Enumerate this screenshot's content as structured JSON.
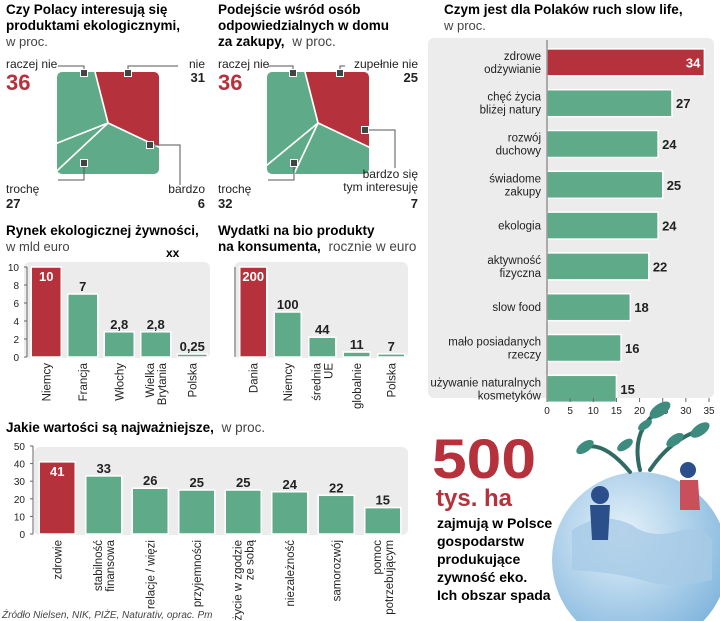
{
  "colors": {
    "red": "#b5313b",
    "green": "#5faa88",
    "panel": "#ececec",
    "axis": "#666666",
    "text": "#222222"
  },
  "source": "Źródło Nielsen, NIK, PIŻE, Naturativ, oprac. Pm",
  "chart_data": [
    {
      "id": "interest",
      "type": "pie",
      "title_lines": [
        "Czy Polacy interesują się",
        "produktami ekologicznymi,"
      ],
      "subtitle": "w proc.",
      "slices": [
        {
          "label": "raczej nie",
          "value": "36",
          "red": true
        },
        {
          "label": "nie",
          "value": "31"
        },
        {
          "label": "bardzo",
          "value": "6"
        },
        {
          "label": "trochę",
          "value": "27"
        }
      ]
    },
    {
      "id": "responsible",
      "type": "pie",
      "title_lines": [
        "Podejście wśród osób",
        "odpowiedzialnych w domu"
      ],
      "title_last": "za zakupy,",
      "subtitle": "w proc.",
      "slices": [
        {
          "label": "raczej nie",
          "value": "36",
          "red": true
        },
        {
          "label": "zupełnie nie",
          "value": "25"
        },
        {
          "label": "bardzo się tym interesuję",
          "label_lines": [
            "bardzo się",
            "tym interesuję"
          ],
          "value": "7"
        },
        {
          "label": "trochę",
          "value": "32"
        }
      ]
    },
    {
      "id": "slowlife",
      "type": "bar",
      "orientation": "horizontal",
      "title": "Czym jest dla Polaków ruch slow life,",
      "subtitle": "w proc.",
      "xlim": [
        0,
        35
      ],
      "ticks": [
        "0",
        "5",
        "10",
        "15",
        "20",
        "25",
        "30",
        "35"
      ],
      "categories": [
        [
          "zdrowe",
          "odżywianie"
        ],
        [
          "chęć życia",
          "bliżej natury"
        ],
        [
          "rozwój",
          "duchowy"
        ],
        [
          "świadome",
          "zakupy"
        ],
        [
          "ekologia"
        ],
        [
          "aktywność",
          "fizyczna"
        ],
        [
          "slow food"
        ],
        [
          "mało posiadanych",
          "rzeczy"
        ],
        [
          "używanie naturalnych",
          "kosmetyków"
        ]
      ],
      "values": [
        34,
        27,
        24,
        25,
        24,
        22,
        18,
        16,
        15
      ],
      "labels": [
        "34",
        "27",
        "24",
        "25",
        "24",
        "22",
        "18",
        "16",
        "15"
      ]
    },
    {
      "id": "market",
      "type": "bar",
      "title": "Rynek ekologicznej  żywności,",
      "subtitle": "w mld euro",
      "note": "xx",
      "ylim": [
        0,
        10
      ],
      "ticks": [
        "0",
        "2",
        "4",
        "6",
        "8",
        "10"
      ],
      "categories": [
        [
          "Niemcy"
        ],
        [
          "Francja"
        ],
        [
          "Włochy"
        ],
        [
          "Wielka",
          "Brytania"
        ],
        [
          "Polska"
        ]
      ],
      "values": [
        10,
        7,
        2.8,
        2.8,
        0.25
      ],
      "labels": [
        "10",
        "7",
        "2,8",
        "2,8",
        "0,25"
      ]
    },
    {
      "id": "spending",
      "type": "bar",
      "title": "Wydatki na bio produkty",
      "title_last": "na konsumenta,",
      "subtitle": "rocznie w euro",
      "ylim": [
        0,
        200
      ],
      "categories": [
        [
          "Dania"
        ],
        [
          "Niemcy"
        ],
        [
          "średnia",
          "UE"
        ],
        [
          "globalnie"
        ],
        [
          "Polska"
        ]
      ],
      "values": [
        200,
        100,
        44,
        11,
        7
      ],
      "labels": [
        "200",
        "100",
        "44",
        "11",
        "7"
      ]
    },
    {
      "id": "values",
      "type": "bar",
      "title": "Jakie wartości są najważniejsze,",
      "subtitle": "w proc.",
      "ylim": [
        0,
        50
      ],
      "ticks": [
        "0",
        "10",
        "20",
        "30",
        "40",
        "50"
      ],
      "categories": [
        [
          "zdrowie"
        ],
        [
          "stabilność",
          "finansowa"
        ],
        [
          "relacje / więzi"
        ],
        [
          "przyjemności"
        ],
        [
          "życie w zgodzie",
          "ze sobą"
        ],
        [
          "niezależność"
        ],
        [
          "samorozwój"
        ],
        [
          "pomoc",
          "potrzebującym"
        ]
      ],
      "values": [
        41,
        33,
        26,
        25,
        25,
        24,
        22,
        15
      ],
      "labels": [
        "41",
        "33",
        "26",
        "25",
        "25",
        "24",
        "22",
        "15"
      ]
    }
  ],
  "callout": {
    "number": "500",
    "unit": "tys. ha",
    "lines": [
      "zajmują w Polsce",
      "gospodarstw",
      "produkujące",
      "zywność eko.",
      "Ich obszar spada"
    ]
  }
}
